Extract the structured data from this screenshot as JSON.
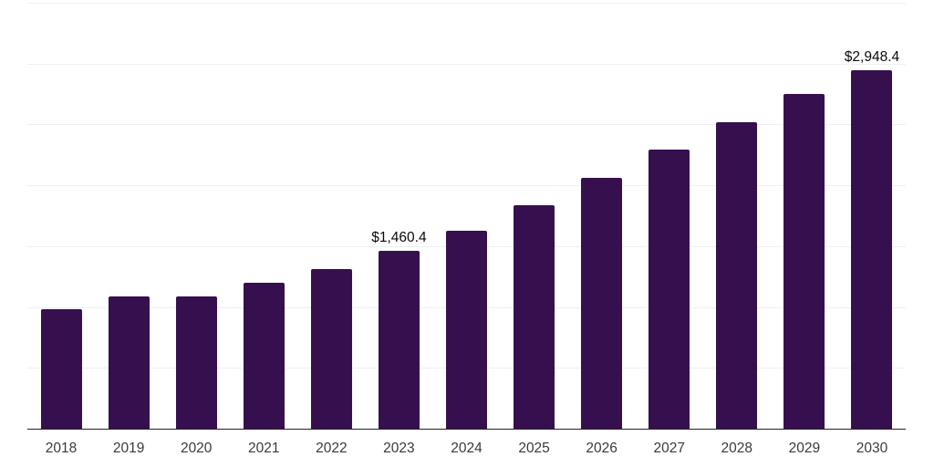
{
  "chart_data": {
    "type": "bar",
    "title": "",
    "xlabel": "",
    "ylabel": "",
    "categories": [
      "2018",
      "2019",
      "2020",
      "2021",
      "2022",
      "2023",
      "2024",
      "2025",
      "2026",
      "2027",
      "2028",
      "2029",
      "2030"
    ],
    "values": [
      980,
      1090,
      1085,
      1200,
      1310,
      1460.4,
      1630,
      1840,
      2060,
      2290,
      2515,
      2750,
      2948.4
    ],
    "data_labels": [
      {
        "category": "2023",
        "text": "$1,460.4"
      },
      {
        "category": "2030",
        "text": "$2,948.4"
      }
    ],
    "ylim": [
      0,
      3500
    ],
    "grid_step": 500,
    "grid": true,
    "legend": false,
    "colors": {
      "bar": "#36104E",
      "axis_line": "#222222",
      "gridline": "#f0f0f2",
      "tick_label": "#3a3a3a",
      "data_label": "#0a0a0a"
    }
  }
}
